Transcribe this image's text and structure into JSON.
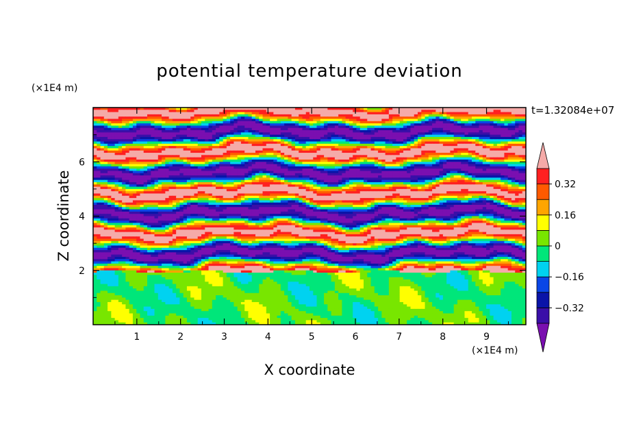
{
  "chart_data": {
    "type": "heatmap",
    "title": "potential temperature deviation",
    "xlabel": "X coordinate",
    "ylabel": "Z coordinate",
    "x_scale_label": "(×1E4 m)",
    "y_scale_label": "(×1E4 m)",
    "time_label": "t=1.32084e+07",
    "xlim": [
      0,
      9.9
    ],
    "ylim": [
      0,
      8
    ],
    "x_ticks": [
      "1",
      "2",
      "3",
      "4",
      "5",
      "6",
      "7",
      "8",
      "9"
    ],
    "y_ticks": [
      "2",
      "4",
      "6"
    ],
    "colorbar": {
      "levels": [
        -0.4,
        -0.32,
        -0.24,
        -0.16,
        -0.08,
        0,
        0.08,
        0.16,
        0.24,
        0.32,
        0.4
      ],
      "labels": [
        "0.32",
        "0.16",
        "0",
        "−0.16",
        "−0.32"
      ],
      "label_values": [
        0.32,
        0.16,
        0,
        -0.16,
        -0.32
      ],
      "colors_low_to_high": [
        "#7a0fb0",
        "#3a0fa8",
        "#0a14a8",
        "#0a46e6",
        "#00d2f0",
        "#00e67a",
        "#78e600",
        "#ffff00",
        "#ffa500",
        "#ff5a00",
        "#ff2020",
        "#f5aaa8"
      ],
      "under_color": "#7a0fb0",
      "over_color": "#f5aaa8"
    },
    "description_of_field": {
      "lower_layer_z_range": [
        0,
        1.95
      ],
      "lower_layer_dominant_value": 0,
      "upper_layer_pattern": "alternating horizontal bands of strong positive (pink) and strong negative (purple) deviations with thinner multicolored transition zones"
    }
  }
}
